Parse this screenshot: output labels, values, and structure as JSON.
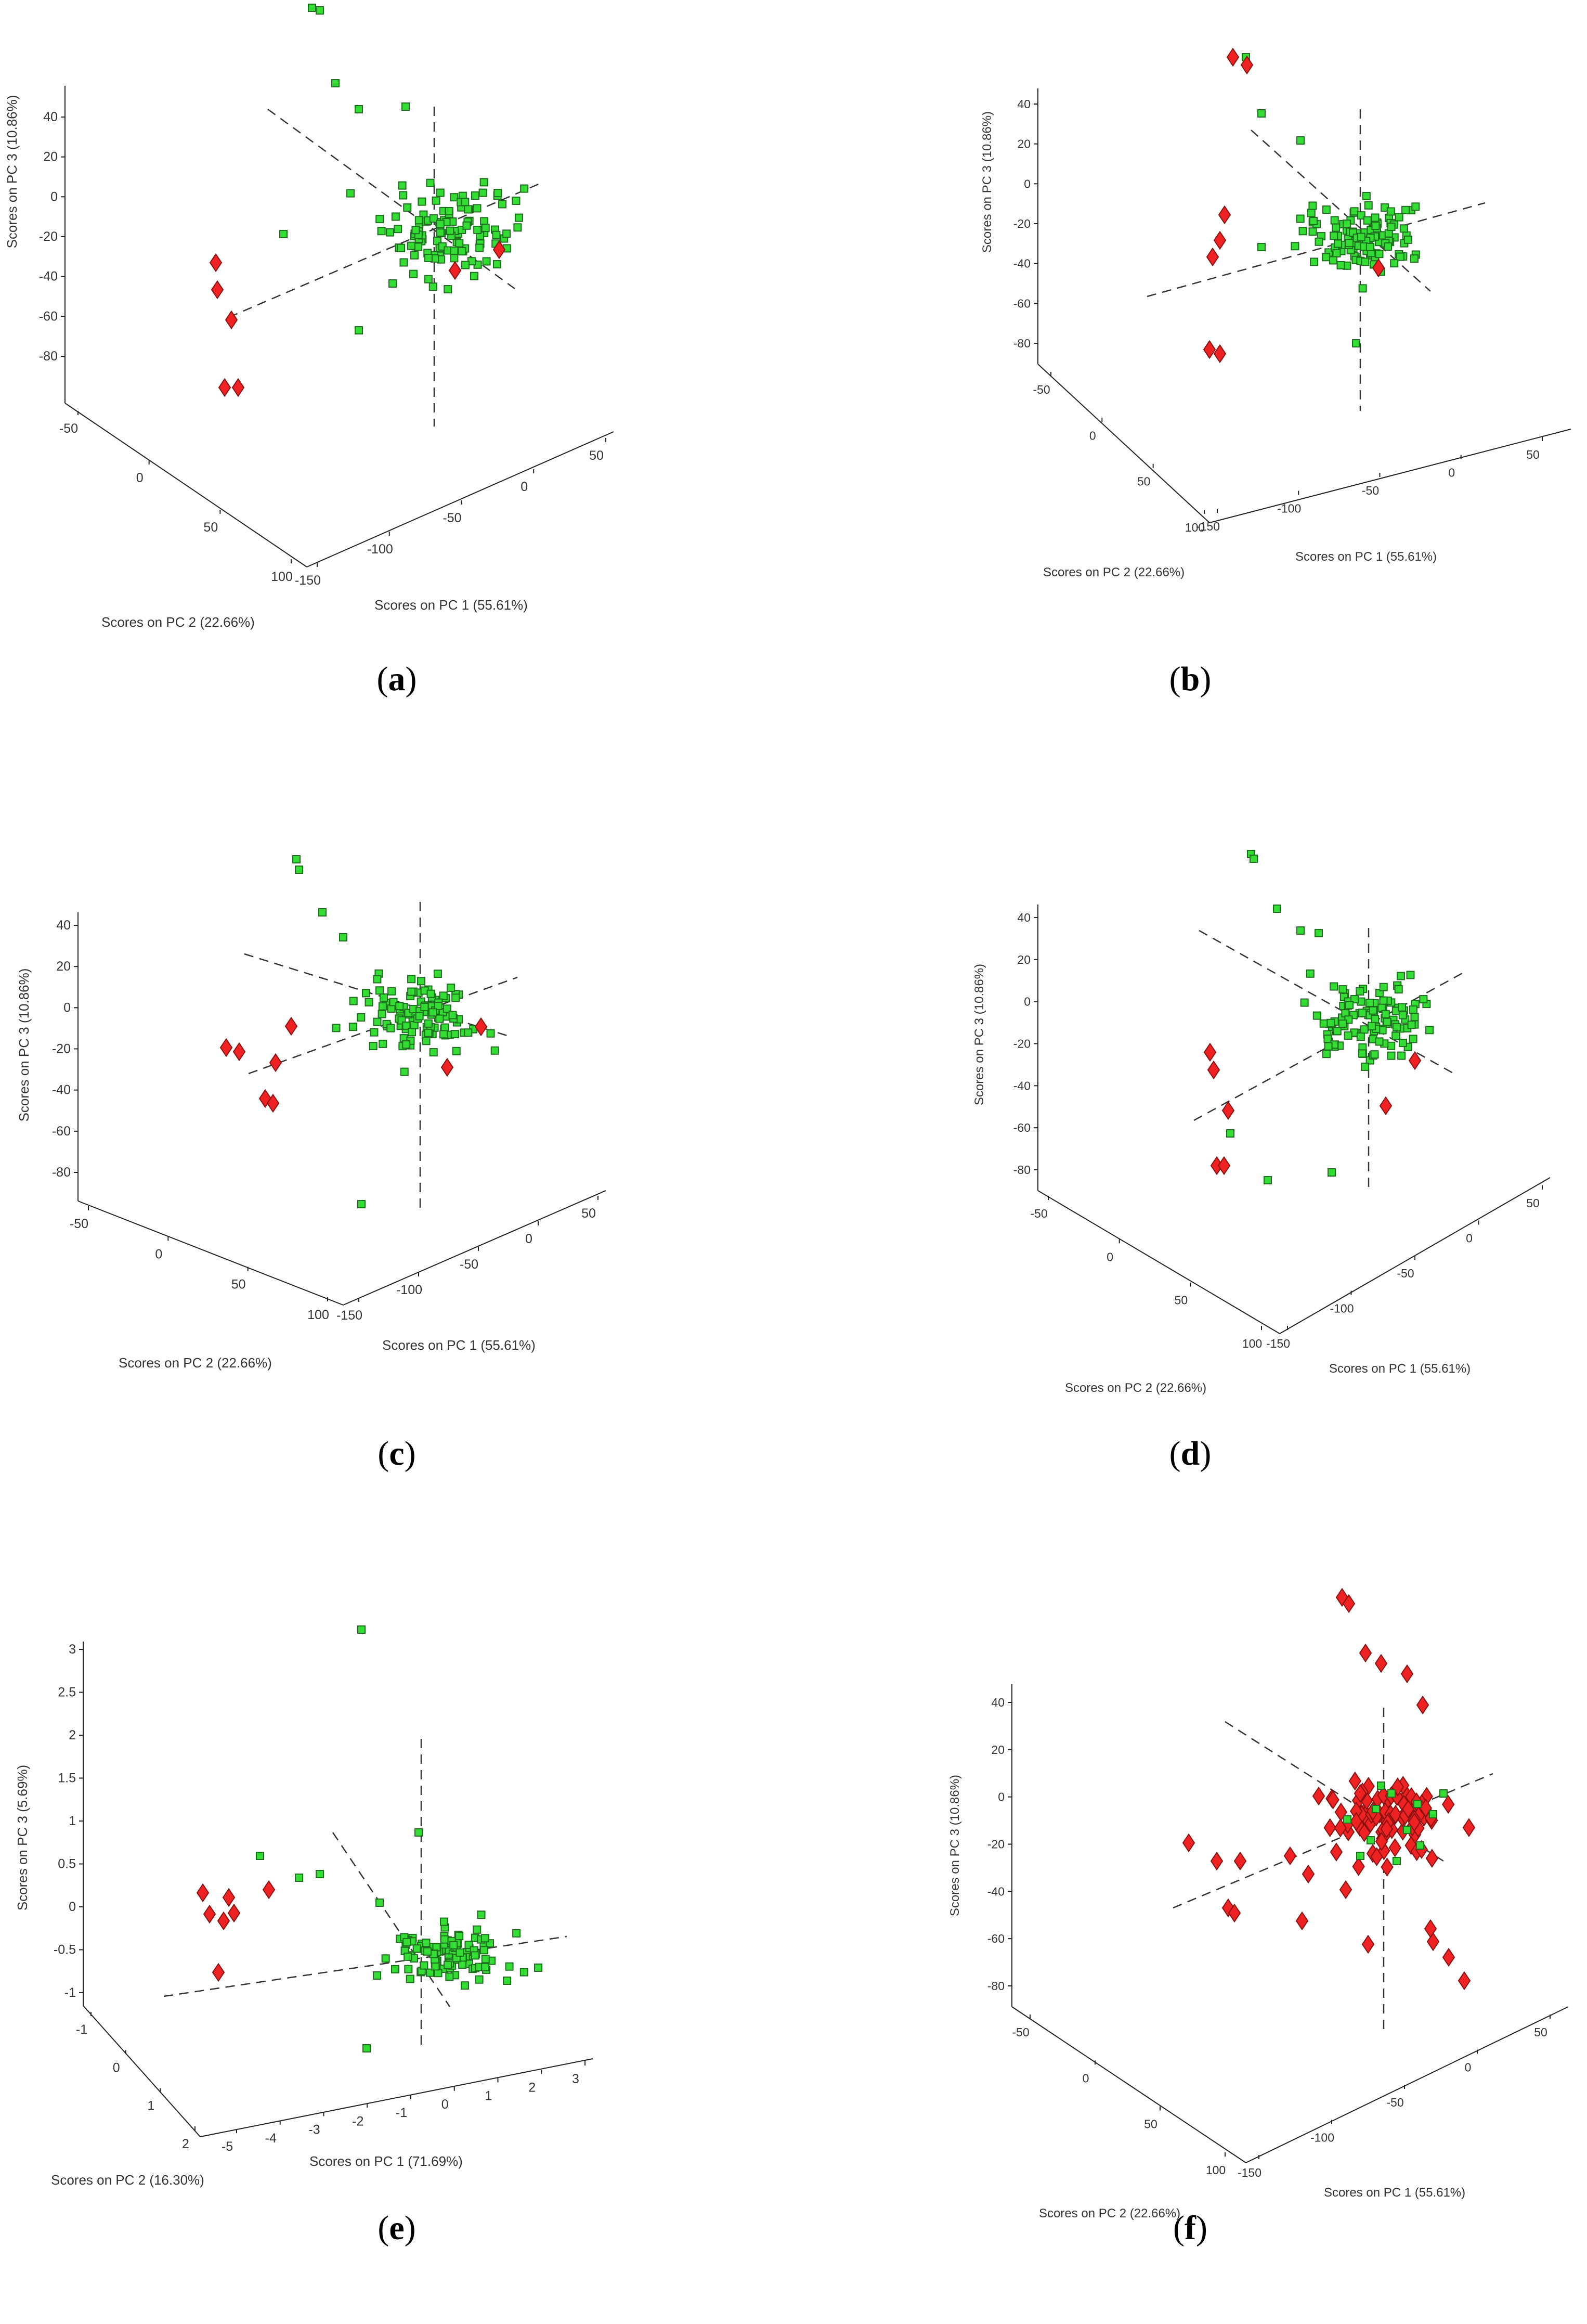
{
  "colors": {
    "green": "#33dd33",
    "green_edge": "#1f6e1f",
    "red": "#ee2222",
    "red_edge": "#8a1010",
    "axis": "#222222",
    "dash": "#333333"
  },
  "markers": {
    "green": "square",
    "red": "diamond"
  },
  "chart_data": [
    {
      "id": "a",
      "type": "scatter",
      "caption": "a",
      "xlabel": "Scores on PC 1 (55.61%)",
      "ylabel": "Scores on PC 2 (22.66%)",
      "zlabel": "Scores on PC 3 (10.86%)",
      "xticks": [
        "-150",
        "-100",
        "-50",
        "0",
        "50"
      ],
      "yticks": [
        "-50",
        "0",
        "50",
        "100"
      ],
      "zticks": [
        "40",
        "20",
        "0",
        "-20",
        "-40",
        "-60",
        "-80"
      ]
    },
    {
      "id": "b",
      "type": "scatter",
      "caption": "b",
      "xlabel": "Scores on PC 1 (55.61%)",
      "ylabel": "Scores on PC 2 (22.66%)",
      "zlabel": "Scores on PC 3 (10.86%)",
      "xticks": [
        "-150",
        "-100",
        "-50",
        "0",
        "50"
      ],
      "yticks": [
        "-50",
        "0",
        "50",
        "100"
      ],
      "zticks": [
        "40",
        "20",
        "0",
        "-20",
        "-40",
        "-60",
        "-80"
      ]
    },
    {
      "id": "c",
      "type": "scatter",
      "caption": "c",
      "xlabel": "Scores on PC 1 (55.61%)",
      "ylabel": "Scores on PC 2 (22.66%)",
      "zlabel": "Scores on PC 3 (10.86%)",
      "xticks": [
        "-150",
        "-100",
        "-50",
        "0",
        "50"
      ],
      "yticks": [
        "-50",
        "0",
        "50",
        "100"
      ],
      "zticks": [
        "40",
        "20",
        "0",
        "-20",
        "-40",
        "-60",
        "-80"
      ]
    },
    {
      "id": "d",
      "type": "scatter",
      "caption": "d",
      "xlabel": "Scores on PC 1 (55.61%)",
      "ylabel": "Scores on PC 2 (22.66%)",
      "zlabel": "Scores on PC 3 (10.86%)",
      "xticks": [
        "-150",
        "-100",
        "-50",
        "0",
        "50"
      ],
      "yticks": [
        "-50",
        "0",
        "50",
        "100"
      ],
      "zticks": [
        "40",
        "20",
        "0",
        "-20",
        "-40",
        "-60",
        "-80"
      ]
    },
    {
      "id": "e",
      "type": "scatter",
      "caption": "e",
      "xlabel": "Scores on PC 1 (71.69%)",
      "ylabel": "Scores on PC 2 (16.30%)",
      "zlabel": "Scores on PC 3 (5.69%)",
      "xticks": [
        "-5",
        "-4",
        "-3",
        "-2",
        "-1",
        "0",
        "1",
        "2",
        "3"
      ],
      "yticks": [
        "-1",
        "0",
        "1",
        "2"
      ],
      "zticks": [
        "3",
        "2.5",
        "2",
        "1.5",
        "1",
        "0.5",
        "0",
        "-0.5",
        "-1"
      ]
    },
    {
      "id": "f",
      "type": "scatter",
      "caption": "f",
      "xlabel": "Scores on PC 1 (55.61%)",
      "ylabel": "Scores on PC 2 (22.66%)",
      "zlabel": "Scores on PC 3 (10.86%)",
      "xticks": [
        "-150",
        "-100",
        "-50",
        "0",
        "50"
      ],
      "yticks": [
        "-50",
        "0",
        "50",
        "100"
      ],
      "zticks": [
        "40",
        "20",
        "0",
        "-20",
        "-40",
        "-60",
        "-80"
      ]
    }
  ]
}
